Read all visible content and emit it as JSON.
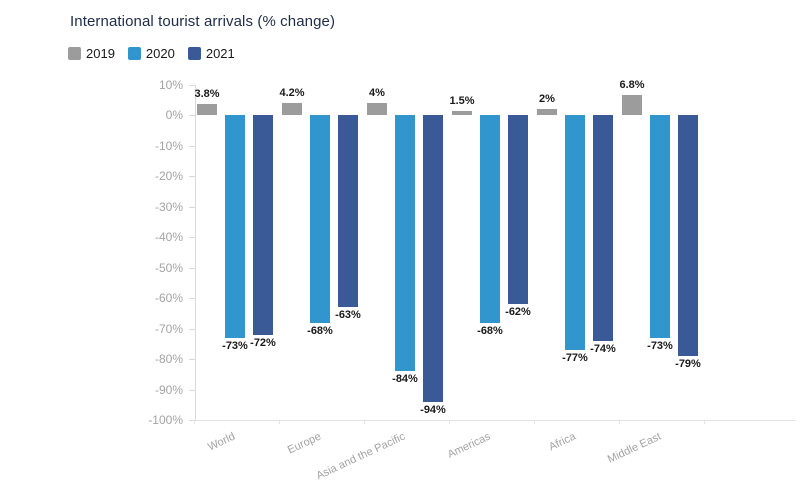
{
  "title": "International tourist arrivals (% change)",
  "legend": {
    "position": "top-left",
    "items": [
      {
        "label": "2019",
        "color": "#9c9c9c"
      },
      {
        "label": "2020",
        "color": "#3196ce"
      },
      {
        "label": "2021",
        "color": "#3a5a97"
      }
    ]
  },
  "chart_data": {
    "type": "bar",
    "title": "International tourist arrivals (% change)",
    "xlabel": "",
    "ylabel": "",
    "grid": false,
    "legend_position": "top-left",
    "categories": [
      "World",
      "Europe",
      "Asia and the Pacific",
      "Americas",
      "Africa",
      "Middle East"
    ],
    "series": [
      {
        "name": "2019",
        "color": "#9c9c9c",
        "values": [
          3.8,
          4.2,
          4,
          1.5,
          2,
          6.8
        ],
        "labels": [
          "3.8%",
          "4.2%",
          "4%",
          "1.5%",
          "2%",
          "6.8%"
        ]
      },
      {
        "name": "2020",
        "color": "#3196ce",
        "values": [
          -73,
          -68,
          -84,
          -68,
          -77,
          -73
        ],
        "labels": [
          "-73%",
          "-68%",
          "-84%",
          "-68%",
          "-77%",
          "-73%"
        ]
      },
      {
        "name": "2021",
        "color": "#3a5a97",
        "values": [
          -72,
          -63,
          -94,
          -62,
          -74,
          -79
        ],
        "labels": [
          "-72%",
          "-63%",
          "-94%",
          "-62%",
          "-74%",
          "-79%"
        ]
      }
    ],
    "y_axis": {
      "min": -100,
      "max": 10,
      "ticks": [
        {
          "value": 10,
          "label": "10%"
        },
        {
          "value": 0,
          "label": "0%"
        },
        {
          "value": -10,
          "label": "-10%"
        },
        {
          "value": -20,
          "label": "-20%"
        },
        {
          "value": -30,
          "label": "-30%"
        },
        {
          "value": -40,
          "label": "-40%"
        },
        {
          "value": -50,
          "label": "-50%"
        },
        {
          "value": -60,
          "label": "-60%"
        },
        {
          "value": -70,
          "label": "-70%"
        },
        {
          "value": -80,
          "label": "-80%"
        },
        {
          "value": -90,
          "label": "-90%"
        },
        {
          "value": -100,
          "label": "-100%"
        }
      ]
    },
    "colors": {
      "title_text": "#1e2c49",
      "axis_line": "#d9d9d9",
      "bottom_line": "#e3e3e3",
      "tick_text": "#a3a3a3",
      "value_label_text": "#1a1a1a",
      "background": "#ffffff"
    }
  }
}
